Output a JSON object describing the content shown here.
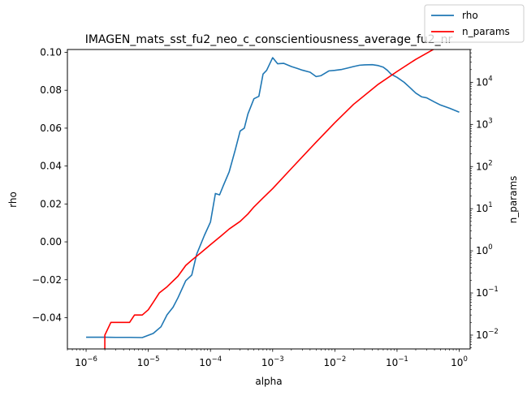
{
  "chart_data": {
    "type": "line",
    "title": "IMAGEN_mats_sst_fu2_neo_c_conscientiousness_average_fu2_nr",
    "xlabel": "alpha",
    "ylabel": "rho",
    "y2label": "n_params",
    "xscale": "log",
    "y2scale": "log",
    "xlim": [
      5e-07,
      1.5
    ],
    "ylim": [
      -0.0565,
      0.1015
    ],
    "y2lim": [
      0.0047,
      60000
    ],
    "x_tick_labels": [
      "10^-6",
      "10^-5",
      "10^-4",
      "10^-3",
      "10^-2",
      "10^-1",
      "10^0"
    ],
    "y_tick_labels": [
      "-0.04",
      "-0.02",
      "0.00",
      "0.02",
      "0.04",
      "0.06",
      "0.08",
      "0.10"
    ],
    "y2_tick_labels": [
      "10^-2",
      "10^-1",
      "10^0",
      "10^1",
      "10^2",
      "10^3",
      "10^4"
    ],
    "legend_position": "top-right",
    "grid": false,
    "series": [
      {
        "name": "rho",
        "color": "#1f77b4",
        "axis": "left",
        "x": [
          1e-06,
          2e-06,
          3e-06,
          5e-06,
          8e-06,
          1.2e-05,
          1.6e-05,
          2e-05,
          2.5e-05,
          3e-05,
          4e-05,
          5e-05,
          6e-05,
          8e-05,
          0.0001,
          0.00012,
          0.00014,
          0.00016,
          0.0002,
          0.00025,
          0.0003,
          0.00035,
          0.0004,
          0.0005,
          0.0006,
          0.0007,
          0.0008,
          0.001,
          0.0012,
          0.0015,
          0.002,
          0.0025,
          0.003,
          0.004,
          0.005,
          0.006,
          0.008,
          0.01,
          0.013,
          0.016,
          0.02,
          0.025,
          0.03,
          0.04,
          0.05,
          0.06,
          0.07,
          0.08,
          0.1,
          0.13,
          0.16,
          0.2,
          0.25,
          0.3,
          0.4,
          0.5,
          0.7,
          1.0
        ],
        "y": [
          -0.0503,
          -0.0503,
          -0.0504,
          -0.0504,
          -0.0505,
          -0.0483,
          -0.0448,
          -0.0385,
          -0.0345,
          -0.0295,
          -0.0205,
          -0.0175,
          -0.0065,
          0.0035,
          0.0105,
          0.0255,
          0.0248,
          0.0295,
          0.037,
          0.0485,
          0.0585,
          0.06,
          0.0675,
          0.0755,
          0.0768,
          0.0885,
          0.0905,
          0.0972,
          0.094,
          0.0942,
          0.0925,
          0.0915,
          0.0906,
          0.0895,
          0.0872,
          0.0877,
          0.0902,
          0.0905,
          0.091,
          0.0917,
          0.0925,
          0.0932,
          0.0934,
          0.0935,
          0.093,
          0.0922,
          0.0905,
          0.0885,
          0.0868,
          0.0842,
          0.0815,
          0.0785,
          0.0765,
          0.076,
          0.0738,
          0.0722,
          0.0705,
          0.0684
        ]
      },
      {
        "name": "n_params",
        "color": "#ff0000",
        "axis": "right",
        "x": [
          2e-06,
          2e-06,
          2.5e-06,
          3e-06,
          4e-06,
          5e-06,
          6e-06,
          8e-06,
          1e-05,
          1.2e-05,
          1.5e-05,
          2e-05,
          3e-05,
          4e-05,
          5e-05,
          7e-05,
          0.0001,
          0.00015,
          0.0002,
          0.0003,
          0.0004,
          0.0005,
          0.0007,
          0.001,
          0.002,
          0.005,
          0.01,
          0.02,
          0.05,
          0.1,
          0.2,
          0.5,
          1.0
        ],
        "y": [
          0.003,
          0.01,
          0.02,
          0.02,
          0.02,
          0.02,
          0.03,
          0.03,
          0.04,
          0.06,
          0.1,
          0.14,
          0.25,
          0.45,
          0.6,
          0.9,
          1.4,
          2.3,
          3.3,
          5.0,
          7.5,
          11,
          18,
          30,
          90,
          380,
          1100,
          3000,
          9000,
          18000,
          35000,
          75000,
          120000
        ]
      }
    ]
  }
}
